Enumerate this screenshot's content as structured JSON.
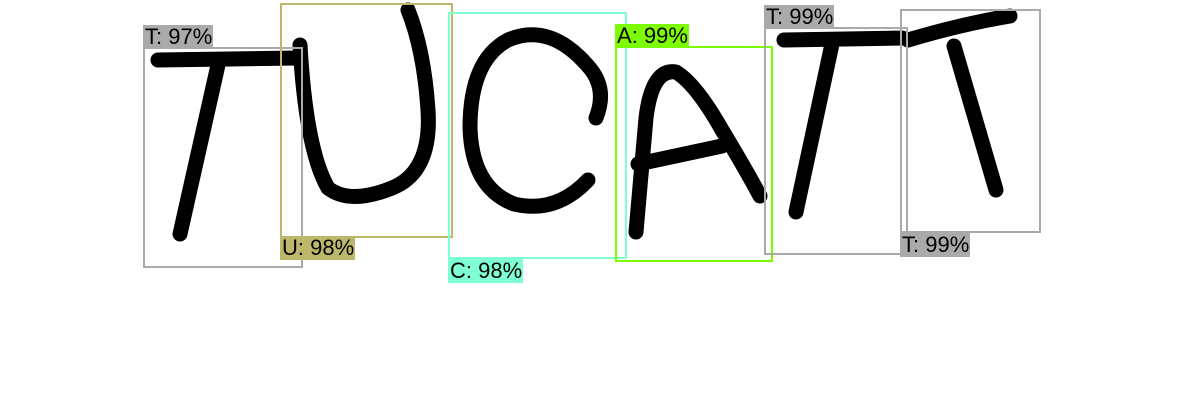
{
  "detections": [
    {
      "label": "T",
      "confidence": "97%",
      "color": "#aaaaaa"
    },
    {
      "label": "U",
      "confidence": "98%",
      "color": "#bdb76b"
    },
    {
      "label": "C",
      "confidence": "98%",
      "color": "#7fffd4"
    },
    {
      "label": "A",
      "confidence": "99%",
      "color": "#7cfc00"
    },
    {
      "label": "T",
      "confidence": "99%",
      "color": "#aaaaaa"
    },
    {
      "label": "T",
      "confidence": "99%",
      "color": "#aaaaaa"
    }
  ]
}
